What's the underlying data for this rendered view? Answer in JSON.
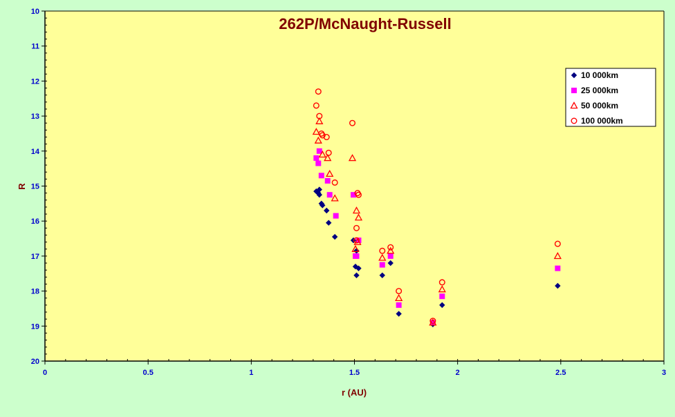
{
  "chart_data": {
    "type": "scatter",
    "title": "262P/McNaught-Russell",
    "xlabel": "r (AU)",
    "ylabel": "R",
    "xlim": [
      0,
      3
    ],
    "ylim": [
      10,
      20
    ],
    "y_inverted": true,
    "x_ticks": [
      "0",
      "0.5",
      "1",
      "1.5",
      "2",
      "2.5",
      "3"
    ],
    "x_tick_values": [
      0,
      0.5,
      1,
      1.5,
      2,
      2.5,
      3
    ],
    "y_ticks": [
      "10",
      "11",
      "12",
      "13",
      "14",
      "15",
      "16",
      "17",
      "18",
      "19",
      "20"
    ],
    "y_tick_values": [
      10,
      11,
      12,
      13,
      14,
      15,
      16,
      17,
      18,
      19,
      20
    ],
    "grid": false,
    "legend_position": "top-right",
    "colors": {
      "figure_bg": "#ccffcc",
      "plot_bg": "#ffff99",
      "axis_text": "#0000cc",
      "title_text": "#800000"
    },
    "series": [
      {
        "name": "10 000km",
        "marker": "diamond",
        "color": "#000080",
        "points": [
          [
            1.315,
            15.15
          ],
          [
            1.325,
            15.2
          ],
          [
            1.33,
            15.1
          ],
          [
            1.33,
            15.25
          ],
          [
            1.34,
            15.5
          ],
          [
            1.345,
            15.55
          ],
          [
            1.365,
            15.7
          ],
          [
            1.375,
            16.05
          ],
          [
            1.405,
            16.45
          ],
          [
            1.495,
            16.55
          ],
          [
            1.505,
            17.3
          ],
          [
            1.51,
            17.55
          ],
          [
            1.51,
            16.85
          ],
          [
            1.52,
            17.35
          ],
          [
            1.635,
            17.55
          ],
          [
            1.675,
            17.2
          ],
          [
            1.715,
            18.65
          ],
          [
            1.88,
            18.95
          ],
          [
            1.925,
            18.4
          ],
          [
            2.485,
            17.85
          ]
        ]
      },
      {
        "name": "25 000km",
        "marker": "square",
        "color": "#ff00ff",
        "points": [
          [
            1.315,
            14.2
          ],
          [
            1.325,
            14.35
          ],
          [
            1.33,
            14.0
          ],
          [
            1.34,
            14.7
          ],
          [
            1.37,
            14.85
          ],
          [
            1.38,
            15.25
          ],
          [
            1.41,
            15.85
          ],
          [
            1.495,
            15.25
          ],
          [
            1.505,
            17.0
          ],
          [
            1.51,
            17.0
          ],
          [
            1.52,
            16.55
          ],
          [
            1.635,
            17.25
          ],
          [
            1.675,
            17.0
          ],
          [
            1.715,
            18.4
          ],
          [
            1.88,
            18.9
          ],
          [
            1.925,
            18.15
          ],
          [
            2.485,
            17.35
          ]
        ]
      },
      {
        "name": "50 000km",
        "marker": "triangle",
        "color": "#ff0000",
        "points": [
          [
            1.315,
            13.45
          ],
          [
            1.325,
            13.7
          ],
          [
            1.33,
            13.15
          ],
          [
            1.345,
            14.1
          ],
          [
            1.37,
            14.2
          ],
          [
            1.38,
            14.65
          ],
          [
            1.405,
            15.35
          ],
          [
            1.49,
            14.2
          ],
          [
            1.505,
            16.8
          ],
          [
            1.51,
            15.7
          ],
          [
            1.515,
            16.6
          ],
          [
            1.52,
            15.9
          ],
          [
            1.635,
            17.05
          ],
          [
            1.675,
            16.85
          ],
          [
            1.715,
            18.2
          ],
          [
            1.88,
            18.9
          ],
          [
            1.925,
            17.95
          ],
          [
            2.485,
            17.0
          ]
        ]
      },
      {
        "name": "100 000km",
        "marker": "circle",
        "color": "#ff0000",
        "points": [
          [
            1.315,
            12.7
          ],
          [
            1.325,
            12.3
          ],
          [
            1.33,
            13.0
          ],
          [
            1.34,
            13.5
          ],
          [
            1.345,
            13.55
          ],
          [
            1.365,
            13.6
          ],
          [
            1.375,
            14.05
          ],
          [
            1.405,
            14.9
          ],
          [
            1.49,
            13.2
          ],
          [
            1.51,
            16.2
          ],
          [
            1.51,
            16.55
          ],
          [
            1.515,
            15.2
          ],
          [
            1.52,
            15.25
          ],
          [
            1.635,
            16.85
          ],
          [
            1.675,
            16.75
          ],
          [
            1.715,
            18.0
          ],
          [
            1.88,
            18.85
          ],
          [
            1.925,
            17.75
          ],
          [
            2.485,
            16.65
          ]
        ]
      }
    ]
  }
}
